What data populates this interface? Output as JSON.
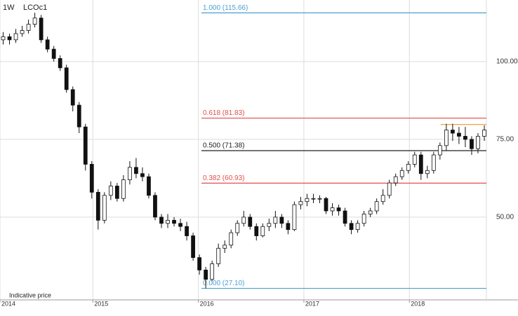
{
  "chart_data": {
    "type": "candlestick",
    "interval": "1W",
    "symbol": "LCOc1",
    "note": "Indicative price",
    "x": [
      2014.15,
      2014.21,
      2014.27,
      2014.33,
      2014.39,
      2014.45,
      2014.51,
      2014.57,
      2014.63,
      2014.69,
      2014.75,
      2014.81,
      2014.87,
      2014.93,
      2014.99,
      2015.05,
      2015.11,
      2015.17,
      2015.23,
      2015.29,
      2015.35,
      2015.41,
      2015.47,
      2015.53,
      2015.59,
      2015.65,
      2015.71,
      2015.77,
      2015.83,
      2015.89,
      2015.95,
      2016.01,
      2016.07,
      2016.13,
      2016.19,
      2016.25,
      2016.31,
      2016.37,
      2016.43,
      2016.49,
      2016.55,
      2016.61,
      2016.67,
      2016.73,
      2016.79,
      2016.85,
      2016.91,
      2016.97,
      2017.03,
      2017.09,
      2017.15,
      2017.21,
      2017.27,
      2017.33,
      2017.39,
      2017.45,
      2017.51,
      2017.57,
      2017.63,
      2017.69,
      2017.75,
      2017.81,
      2017.87,
      2017.93,
      2017.99,
      2018.05,
      2018.11,
      2018.17,
      2018.23,
      2018.29,
      2018.35,
      2018.41,
      2018.47,
      2018.53,
      2018.59,
      2018.65,
      2018.71
    ],
    "open": [
      107,
      108,
      107,
      109,
      110,
      112,
      114,
      107,
      104,
      101,
      98,
      91,
      86,
      79,
      67,
      58,
      49,
      57,
      60,
      56,
      62,
      66,
      64,
      63,
      57,
      50,
      48,
      49,
      48,
      47,
      44,
      37,
      33,
      30,
      35,
      40,
      41,
      45,
      48,
      50,
      47,
      44,
      47,
      48,
      50,
      48,
      46,
      54,
      55,
      56,
      56,
      56,
      52,
      53,
      52,
      48,
      46,
      48,
      51,
      52,
      55,
      57,
      61,
      63,
      65,
      67,
      70,
      64,
      65,
      70,
      73,
      78,
      77,
      76,
      75,
      72,
      76
    ],
    "high": [
      109.5,
      109,
      110.5,
      111.5,
      113.5,
      115.7,
      115,
      108,
      105,
      102,
      99,
      92,
      87,
      80,
      68,
      59,
      58,
      61.5,
      61,
      63.5,
      68,
      69,
      66,
      64,
      58,
      51,
      51,
      50,
      49.5,
      48.5,
      45,
      38,
      34,
      36,
      41.5,
      42.5,
      46,
      49,
      52,
      51,
      48,
      48,
      49.5,
      52,
      51,
      49,
      55,
      56.5,
      57.5,
      57.5,
      57,
      56.5,
      54.5,
      54,
      53,
      49,
      49,
      52,
      53,
      56,
      59,
      62,
      64,
      66,
      68,
      71,
      71,
      66.5,
      71,
      74,
      80,
      80,
      79,
      79,
      76,
      77,
      79.5
    ],
    "low": [
      105.5,
      105.5,
      106,
      108,
      109,
      111,
      106,
      103,
      100,
      97,
      90,
      84,
      77,
      65,
      56,
      46,
      48,
      55.5,
      55,
      55,
      60.5,
      62.5,
      61.5,
      56,
      49,
      46.5,
      46.5,
      47,
      45.5,
      42.5,
      36,
      31.5,
      27.1,
      29.5,
      34,
      38.5,
      40,
      44,
      47,
      46,
      42.5,
      43.5,
      45.5,
      46.5,
      46.5,
      44.5,
      45.5,
      52.5,
      53.5,
      54.5,
      54.5,
      51,
      50.5,
      50.5,
      47,
      44.5,
      45,
      47,
      50,
      51,
      54,
      56,
      60,
      62,
      64,
      66,
      62,
      62.5,
      64,
      68.5,
      71.5,
      74.5,
      73.5,
      72.5,
      70,
      70.5,
      74.5
    ],
    "close": [
      108,
      107,
      109,
      110,
      112,
      114,
      107,
      104,
      101,
      98,
      91,
      86,
      79,
      67,
      58,
      49,
      57,
      60,
      56,
      62,
      66,
      64,
      63,
      57,
      50,
      48,
      49,
      48,
      47,
      44,
      37,
      33,
      30,
      35,
      40,
      41,
      45,
      48,
      50,
      47,
      44,
      47,
      48,
      50,
      48,
      46,
      54,
      55,
      56,
      56,
      56,
      52,
      53,
      52,
      48,
      46,
      48,
      51,
      52,
      55,
      57,
      61,
      63,
      65,
      67,
      70,
      64,
      65,
      70,
      73,
      78,
      77,
      76,
      75,
      72,
      76,
      78
    ],
    "xlim": [
      2014.12,
      2018.73
    ],
    "xticks": [
      {
        "value": 2014.12,
        "label": "2014"
      },
      2015,
      2016,
      2017,
      2018
    ],
    "ylim": [
      23.4,
      119.8
    ],
    "yticks": [
      {
        "value": 50,
        "label": "50.00"
      },
      {
        "value": 75,
        "label": "75.00"
      },
      {
        "value": 100,
        "label": "100.00"
      }
    ],
    "grid": true,
    "levels": [
      {
        "label": "1.000 (115.66)",
        "value": 115.66,
        "color": "#4a9fd5"
      },
      {
        "label": "0.618 (81.83)",
        "value": 81.83,
        "color": "#e05050"
      },
      {
        "label": "0.500 (71.38)",
        "value": 71.38,
        "color": "#222222"
      },
      {
        "label": "0.382 (60.93)",
        "value": 60.93,
        "color": "#e05050"
      },
      {
        "label": "0.000 (27.10)",
        "value": 27.1,
        "color": "#4a9fd5"
      }
    ],
    "hline": {
      "value": 79.8,
      "color": "#f5a040"
    }
  }
}
